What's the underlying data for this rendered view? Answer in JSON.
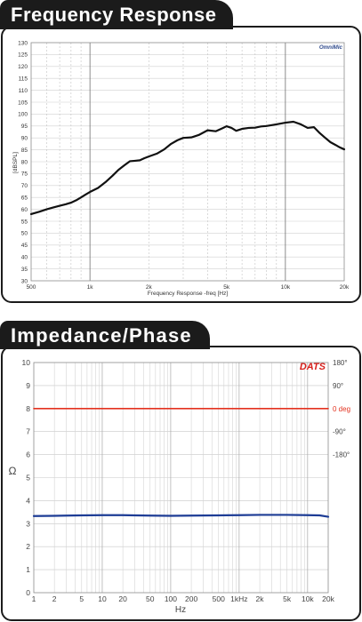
{
  "chart_data": [
    {
      "type": "line",
      "title": "Frequency Response",
      "xlabel": "Frequency Response -freq [Hz]",
      "ylabel": "[dBSPL]",
      "annotation": "OmniMic",
      "xscale": "log",
      "xlim": [
        500,
        20000
      ],
      "ylim": [
        30,
        130
      ],
      "grid": true,
      "x_ticks": [
        {
          "value": 500,
          "label": "500"
        },
        {
          "value": 1000,
          "label": "1k"
        },
        {
          "value": 2000,
          "label": "2k"
        },
        {
          "value": 5000,
          "label": "5k"
        },
        {
          "value": 10000,
          "label": "10k"
        },
        {
          "value": 20000,
          "label": "20k"
        }
      ],
      "y_ticks": [
        30,
        35,
        40,
        45,
        50,
        55,
        60,
        65,
        70,
        75,
        80,
        85,
        90,
        95,
        100,
        105,
        110,
        115,
        120,
        125,
        130
      ],
      "series": [
        {
          "color": "#111111",
          "x": [
            500,
            550,
            600,
            650,
            700,
            750,
            800,
            850,
            900,
            950,
            1000,
            1100,
            1200,
            1300,
            1400,
            1500,
            1600,
            1700,
            1800,
            1900,
            2000,
            2200,
            2400,
            2600,
            2800,
            3000,
            3300,
            3600,
            4000,
            4400,
            4800,
            5000,
            5300,
            5600,
            6000,
            6500,
            7000,
            7500,
            8000,
            9000,
            10000,
            11000,
            12000,
            13000,
            14000,
            15000,
            16000,
            17000,
            18000,
            19000,
            20000
          ],
          "y": [
            58,
            59,
            60,
            60.8,
            61.5,
            62.1,
            62.8,
            63.8,
            65,
            66.2,
            67.3,
            69,
            71.4,
            74,
            76.6,
            78.5,
            80.2,
            80.4,
            80.6,
            81.5,
            82.2,
            83.4,
            85.2,
            87.5,
            89,
            90,
            90.2,
            91.2,
            93.2,
            92.8,
            94.2,
            94.9,
            94.2,
            93,
            93.8,
            94.2,
            94.3,
            94.8,
            95,
            95.7,
            96.4,
            96.8,
            95.7,
            94.2,
            94.5,
            92,
            90,
            88.2,
            87.1,
            86,
            85.2
          ]
        }
      ]
    },
    {
      "type": "line",
      "title": "Impedance/Phase",
      "xlabel": "Hz",
      "ylabel": "Ω",
      "annotation": "DATS",
      "xscale": "log",
      "xlim": [
        1,
        20000
      ],
      "ylim": [
        0,
        10
      ],
      "y2lim": [
        -720,
        180
      ],
      "grid": true,
      "x_ticks": [
        {
          "value": 1,
          "label": "1"
        },
        {
          "value": 2,
          "label": "2"
        },
        {
          "value": 5,
          "label": "5"
        },
        {
          "value": 10,
          "label": "10"
        },
        {
          "value": 20,
          "label": "20"
        },
        {
          "value": 50,
          "label": "50"
        },
        {
          "value": 100,
          "label": "100"
        },
        {
          "value": 200,
          "label": "200"
        },
        {
          "value": 500,
          "label": "500"
        },
        {
          "value": 1000,
          "label": "1kHz"
        },
        {
          "value": 2000,
          "label": "2k"
        },
        {
          "value": 5000,
          "label": "5k"
        },
        {
          "value": 10000,
          "label": "10k"
        },
        {
          "value": 20000,
          "label": "20k"
        }
      ],
      "y_ticks": [
        0,
        1,
        2,
        3,
        4,
        5,
        6,
        7,
        8,
        9,
        10
      ],
      "y2_ticks": [
        {
          "value": 180,
          "label": "180°"
        },
        {
          "value": 90,
          "label": "90°"
        },
        {
          "value": 0,
          "label": "0 deg",
          "color": "#e3321f"
        },
        {
          "value": -90,
          "label": "-90°"
        },
        {
          "value": -180,
          "label": "-180°"
        }
      ],
      "series": [
        {
          "color": "#1d3c95",
          "x": [
            1,
            2,
            3,
            5,
            10,
            20,
            30,
            50,
            100,
            200,
            500,
            1000,
            2000,
            5000,
            10000,
            15000,
            20000
          ],
          "y": [
            3.33,
            3.34,
            3.35,
            3.36,
            3.37,
            3.37,
            3.36,
            3.35,
            3.34,
            3.35,
            3.36,
            3.37,
            3.38,
            3.38,
            3.37,
            3.36,
            3.3
          ]
        }
      ],
      "y2_series": [
        {
          "color": "#e3321f",
          "x": [
            1,
            20000
          ],
          "y": [
            0,
            0
          ]
        }
      ]
    }
  ]
}
